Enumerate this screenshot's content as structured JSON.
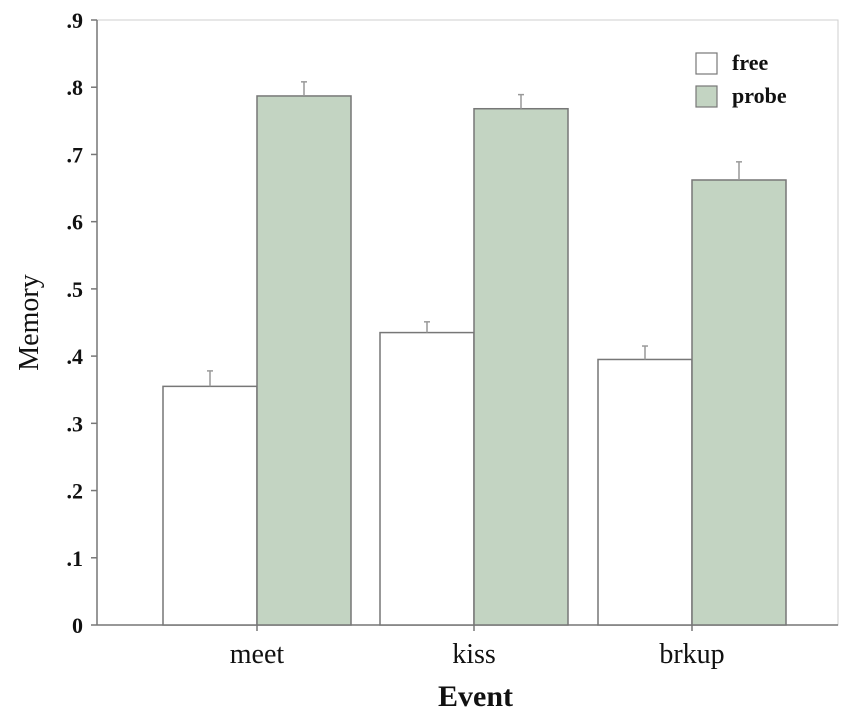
{
  "chart_data": {
    "type": "bar",
    "title": "",
    "xlabel": "Event",
    "ylabel": "Memory",
    "categories": [
      "meet",
      "kiss",
      "brkup"
    ],
    "series": [
      {
        "name": "free",
        "values": [
          0.355,
          0.435,
          0.395
        ],
        "errors": [
          0.023,
          0.016,
          0.02
        ],
        "color": "#ffffff"
      },
      {
        "name": "probe",
        "values": [
          0.787,
          0.768,
          0.662
        ],
        "errors": [
          0.021,
          0.021,
          0.027
        ],
        "color": "#c3d4c2"
      }
    ],
    "ylim": [
      0,
      0.9
    ],
    "yticks": [
      0,
      0.1,
      0.2,
      0.3,
      0.4,
      0.5,
      0.6,
      0.7,
      0.8,
      0.9
    ],
    "ytick_labels": [
      "0",
      ".1",
      ".2",
      ".3",
      ".4",
      ".5",
      ".6",
      ".7",
      ".8",
      ".9"
    ],
    "legend_position": "top-right",
    "grid": false
  }
}
